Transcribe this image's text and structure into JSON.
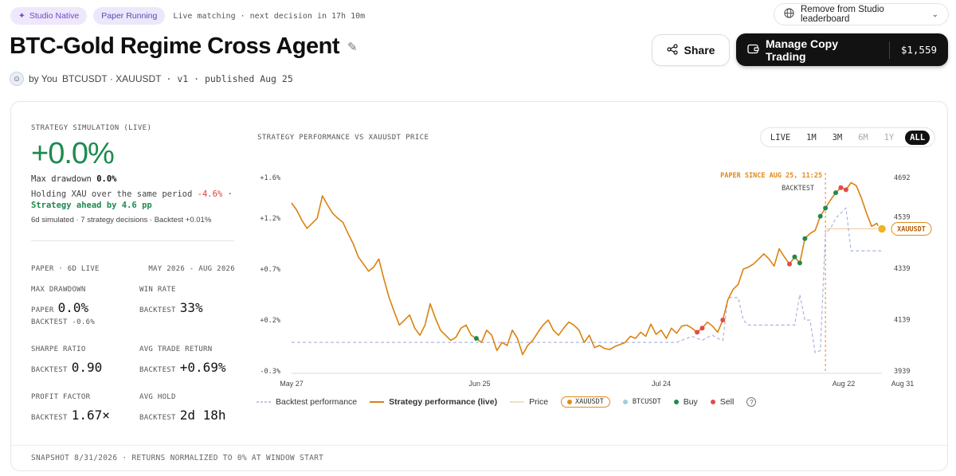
{
  "header": {
    "badge_native": "Studio Native",
    "badge_paper": "Paper Running",
    "live_status": "Live matching · next decision in 17h 10m",
    "remove_label": "Remove from Studio leaderboard",
    "title": "BTC-Gold Regime Cross Agent",
    "by": "by You",
    "pairs": "BTCUSDT · XAUUSDT",
    "version": "· v1 · published Aug 25",
    "share_label": "Share",
    "copy_label": "Manage Copy Trading",
    "copy_amount": "$1,559"
  },
  "summary": {
    "label": "STRATEGY SIMULATION (LIVE)",
    "return": "+0.0%",
    "max_drawdown_label": "Max drawdown",
    "max_drawdown": "0.0%",
    "holding_prefix": "Holding XAU over the same period",
    "holding_value": "-4.6%",
    "ahead": "Strategy ahead by 4.6 pp",
    "sim_line": "6d simulated · 7 strategy decisions · Backtest +0.01%"
  },
  "stats": {
    "paper_label": "PAPER · 6D LIVE",
    "range_label": "MAY 2026 - AUG 2026",
    "max_dd_title": "MAX DRAWDOWN",
    "max_dd_paper_key": "PAPER",
    "max_dd_paper": "0.0%",
    "max_dd_backtest": "BACKTEST -0.6%",
    "win_title": "WIN RATE",
    "win_key": "BACKTEST",
    "win_value": "33%",
    "sharpe_title": "SHARPE RATIO",
    "sharpe_key": "BACKTEST",
    "sharpe_value": "0.90",
    "avg_trade_title": "AVG TRADE RETURN",
    "avg_trade_key": "BACKTEST",
    "avg_trade_value": "+0.69%",
    "pf_title": "PROFIT FACTOR",
    "pf_key": "BACKTEST",
    "pf_value": "1.67×",
    "hold_title": "AVG HOLD",
    "hold_key": "BACKTEST",
    "hold_value": "2d 18h"
  },
  "chart": {
    "title": "STRATEGY PERFORMANCE VS XAUUSDT PRICE",
    "ranges": [
      "LIVE",
      "1M",
      "3M",
      "6M",
      "1Y",
      "ALL"
    ],
    "active_range": "ALL",
    "paper_since": "PAPER SINCE AUG 25, 11:25",
    "backtest_tag": "BACKTEST",
    "price_tag": "XAUUSDT"
  },
  "legend": {
    "backtest": "Backtest performance",
    "live": "Strategy performance (live)",
    "price": "Price",
    "xau": "XAUUSDT",
    "btc": "BTCUSDT",
    "buy": "Buy",
    "sell": "Sell"
  },
  "footer": "SNAPSHOT 8/31/2026 · RETURNS NORMALIZED TO 0% AT WINDOW START",
  "colors": {
    "accent_green": "#1e8a4f",
    "accent_red": "#d9413d",
    "line_orange": "#d9820f",
    "backtest_blue": "#aab4e0",
    "buy": "#1e8a4f",
    "sell": "#e24b4b"
  },
  "chart_data": {
    "type": "line",
    "title": "STRATEGY PERFORMANCE VS XAUUSDT PRICE",
    "x_ticks": [
      "May 27",
      "Jun 25",
      "Jul 24",
      "Aug 22",
      "Aug 31"
    ],
    "y_left_ticks": [
      "+1.6%",
      "+1.2%",
      "+0.7%",
      "+0.2%",
      "-0.3%"
    ],
    "y_right_ticks": [
      "4692",
      "4539",
      "4339",
      "4139",
      "3939"
    ],
    "ylim_left": [
      -0.3,
      1.6
    ],
    "ylim_right": [
      3939,
      4692
    ],
    "series": [
      {
        "name": "Strategy performance (live)",
        "values": [
          1.35,
          1.28,
          1.18,
          1.1,
          1.15,
          1.2,
          1.42,
          1.33,
          1.25,
          1.2,
          1.16,
          1.05,
          0.95,
          0.82,
          0.75,
          0.68,
          0.72,
          0.8,
          0.6,
          0.42,
          0.28,
          0.15,
          0.2,
          0.25,
          0.12,
          0.05,
          0.15,
          0.36,
          0.22,
          0.1,
          0.05,
          0.0,
          0.03,
          0.12,
          0.15,
          0.05,
          0.02,
          -0.02,
          0.1,
          0.05,
          -0.1,
          -0.02,
          -0.05,
          0.1,
          0.02,
          -0.14,
          -0.05,
          0.0,
          0.08,
          0.15,
          0.2,
          0.1,
          0.05,
          0.12,
          0.18,
          0.15,
          0.1,
          -0.02,
          0.05,
          -0.07,
          -0.05,
          -0.08,
          -0.09,
          -0.06,
          -0.04,
          -0.02,
          0.04,
          0.02,
          0.08,
          0.04,
          0.16,
          0.06,
          0.1,
          0.02,
          0.12,
          0.07,
          0.14,
          0.15,
          0.12,
          0.08,
          0.12,
          0.18,
          0.14,
          0.08,
          0.2,
          0.4,
          0.5,
          0.55,
          0.7,
          0.72,
          0.75,
          0.8,
          0.85,
          0.8,
          0.73,
          0.9,
          0.82,
          0.75,
          0.82,
          0.76,
          1.0,
          1.05,
          1.08,
          1.22,
          1.3,
          1.38,
          1.45,
          1.5,
          1.48,
          1.55,
          1.52,
          1.4,
          1.25,
          1.12,
          1.15,
          1.06
        ]
      },
      {
        "name": "Backtest performance",
        "values": [
          -0.02,
          -0.02,
          -0.02,
          -0.02,
          -0.02,
          -0.02,
          -0.02,
          -0.02,
          -0.02,
          -0.02,
          -0.02,
          -0.02,
          -0.02,
          -0.02,
          -0.02,
          -0.02,
          -0.02,
          -0.02,
          -0.02,
          -0.02,
          -0.02,
          -0.02,
          -0.02,
          -0.02,
          -0.02,
          -0.02,
          -0.02,
          -0.02,
          -0.02,
          -0.02,
          -0.02,
          -0.02,
          -0.02,
          -0.02,
          -0.02,
          -0.02,
          -0.02,
          -0.02,
          -0.02,
          -0.02,
          -0.02,
          -0.02,
          -0.02,
          -0.02,
          -0.02,
          -0.02,
          -0.02,
          -0.02,
          -0.02,
          -0.02,
          -0.02,
          -0.02,
          -0.02,
          -0.02,
          -0.02,
          -0.02,
          -0.02,
          -0.02,
          -0.02,
          -0.02,
          -0.02,
          -0.02,
          -0.02,
          -0.02,
          -0.02,
          -0.02,
          -0.02,
          -0.02,
          -0.02,
          -0.02,
          -0.02,
          -0.02,
          -0.02,
          -0.02,
          -0.02,
          -0.02,
          0.0,
          0.02,
          0.04,
          0.02,
          0.0,
          0.03,
          0.05,
          0.02,
          0.0,
          0.42,
          0.42,
          0.42,
          0.2,
          0.15,
          0.15,
          0.15,
          0.15,
          0.15,
          0.15,
          0.15,
          0.15,
          0.15,
          0.15,
          0.45,
          0.2,
          0.2,
          -0.12,
          -0.1,
          1.05,
          1.1,
          1.2,
          1.25,
          1.3,
          0.88,
          0.88,
          0.88,
          0.88,
          0.88,
          0.88,
          0.88
        ]
      }
    ],
    "buys": [
      36,
      98,
      99,
      100,
      103,
      104,
      106
    ],
    "sells": [
      79,
      80,
      84,
      97,
      107,
      108
    ],
    "price_last": 4492
  }
}
